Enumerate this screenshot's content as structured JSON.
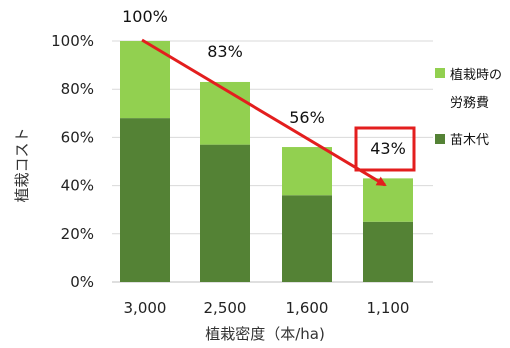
{
  "chart_data": {
    "type": "bar",
    "stacked": true,
    "categories": [
      "3,000",
      "2,500",
      "1,600",
      "1,100"
    ],
    "series": [
      {
        "name": "苗木代",
        "values": [
          68,
          57,
          36,
          25
        ],
        "color": "#548235"
      },
      {
        "name": "植栽時の労務費",
        "values": [
          32,
          26,
          20,
          18
        ],
        "color": "#92d050"
      }
    ],
    "totals": [
      100,
      83,
      56,
      43
    ],
    "total_labels": [
      "100%",
      "83%",
      "56%",
      "43%"
    ],
    "xlabel": "植栽密度（本/ha)",
    "ylabel": "植栽コスト",
    "ylim": [
      0,
      100
    ],
    "yticks": [
      {
        "value": 0,
        "label": "0%"
      },
      {
        "value": 20,
        "label": "20%"
      },
      {
        "value": 40,
        "label": "40%"
      },
      {
        "value": 60,
        "label": "60%"
      },
      {
        "value": 80,
        "label": "80%"
      },
      {
        "value": 100,
        "label": "100%"
      }
    ],
    "grid": true,
    "legend": {
      "placement": "right",
      "items": [
        {
          "lines": [
            "植栽時の",
            "労務費"
          ],
          "color": "#92d050"
        },
        {
          "lines": [
            "苗木代"
          ],
          "color": "#548235"
        }
      ]
    },
    "annotation": {
      "arrow_from_category": "3,000",
      "arrow_to_category": "1,100",
      "highlight_label": "43%",
      "color": "#e31e1e"
    }
  }
}
